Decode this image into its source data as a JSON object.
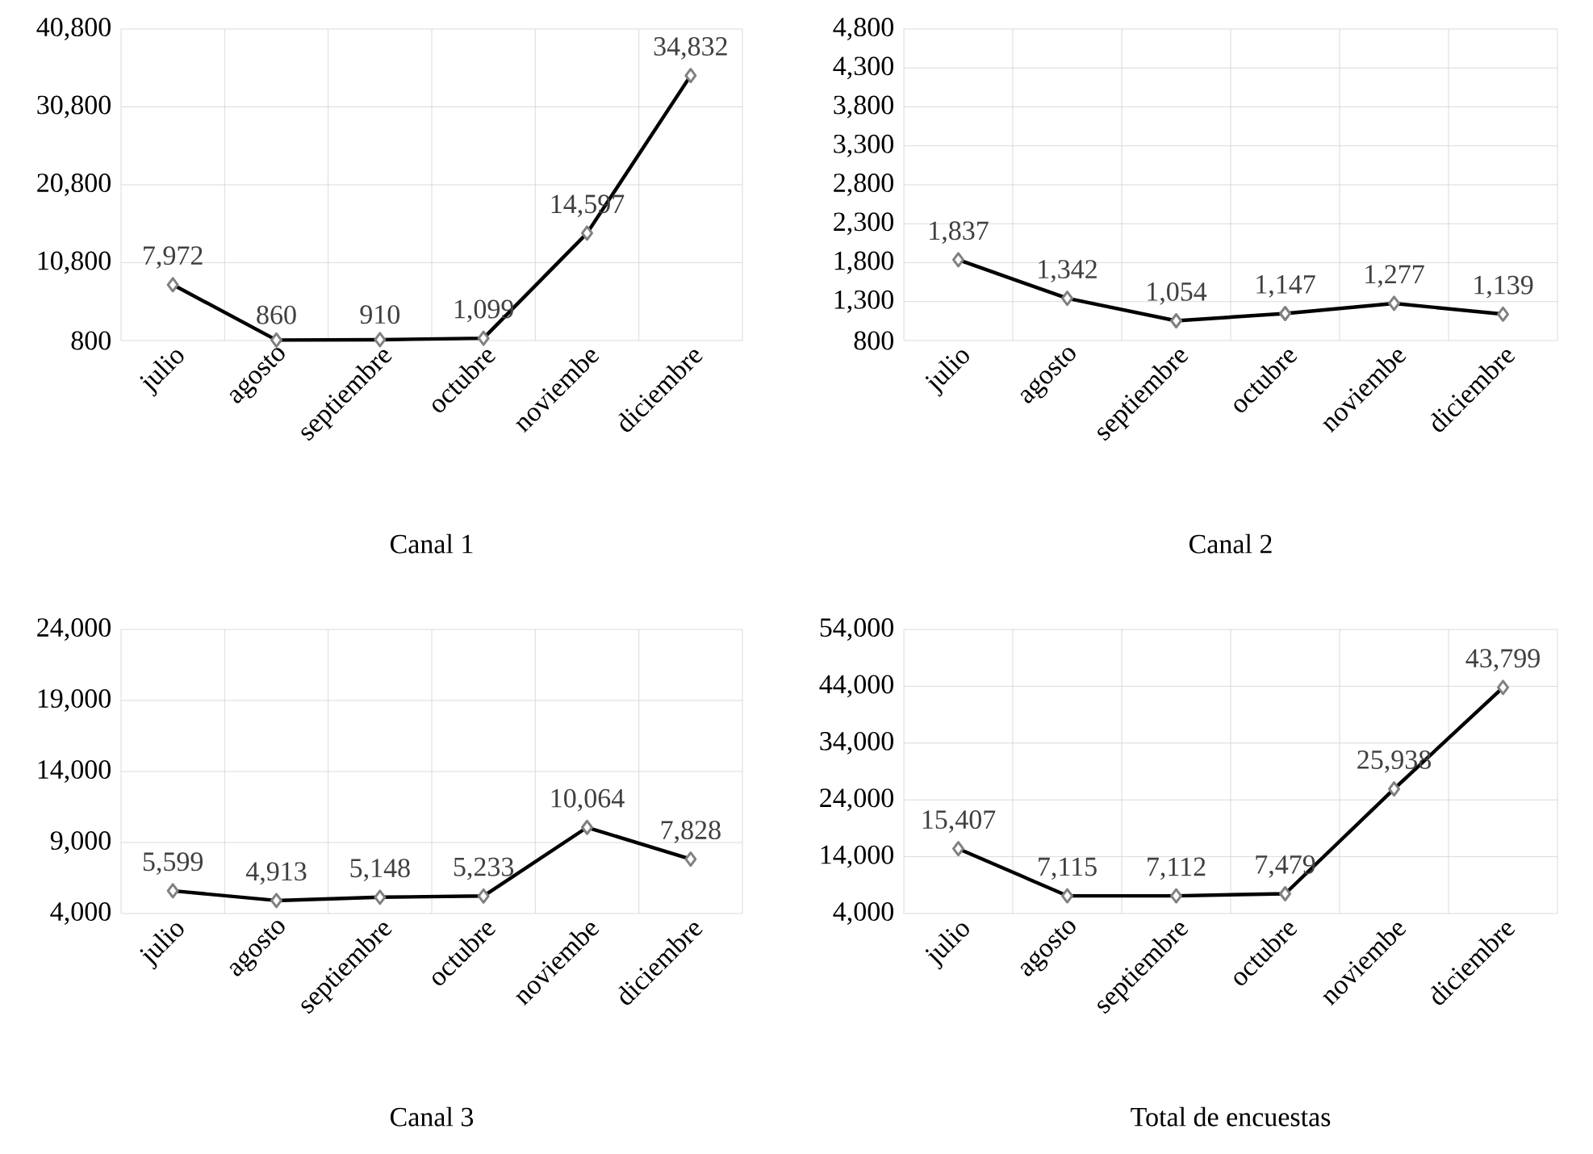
{
  "chart_data": [
    {
      "type": "line",
      "title": "Canal 1",
      "categories": [
        "julio",
        "agosto",
        "septiembre",
        "octubre",
        "noviembe",
        "diciembre"
      ],
      "series": [
        {
          "color": "#000000",
          "values": [
            7972,
            860,
            910,
            1099,
            14597,
            34832
          ],
          "value_labels": [
            "7,972",
            "860",
            "910",
            "1,099",
            "14,597",
            "34,832"
          ]
        }
      ],
      "ylim": [
        800,
        40800
      ],
      "yticks": [
        {
          "value": 800,
          "label": "800"
        },
        {
          "value": 10800,
          "label": "10,800"
        },
        {
          "value": 20800,
          "label": "20,800"
        },
        {
          "value": 30800,
          "label": "30,800"
        },
        {
          "value": 40800,
          "label": "40,800"
        }
      ],
      "grid": true,
      "marker": "diamond",
      "line_style": "solid"
    },
    {
      "type": "line",
      "title": "Canal 2",
      "categories": [
        "julio",
        "agosto",
        "septiembre",
        "octubre",
        "noviembe",
        "diciembre"
      ],
      "series": [
        {
          "color": "#000000",
          "values": [
            1837,
            1342,
            1054,
            1147,
            1277,
            1139
          ],
          "value_labels": [
            "1,837",
            "1,342",
            "1,054",
            "1,147",
            "1,277",
            "1,139"
          ]
        }
      ],
      "ylim": [
        800,
        4800
      ],
      "yticks": [
        {
          "value": 800,
          "label": "800"
        },
        {
          "value": 1300,
          "label": "1,300"
        },
        {
          "value": 1800,
          "label": "1,800"
        },
        {
          "value": 2300,
          "label": "2,300"
        },
        {
          "value": 2800,
          "label": "2,800"
        },
        {
          "value": 3300,
          "label": "3,300"
        },
        {
          "value": 3800,
          "label": "3,800"
        },
        {
          "value": 4300,
          "label": "4,300"
        },
        {
          "value": 4800,
          "label": "4,800"
        }
      ],
      "grid": true,
      "marker": "diamond",
      "line_style": "solid"
    },
    {
      "type": "line",
      "title": "Canal 3",
      "categories": [
        "julio",
        "agosto",
        "septiembre",
        "octubre",
        "noviembe",
        "diciembre"
      ],
      "series": [
        {
          "color": "#000000",
          "values": [
            5599,
            4913,
            5148,
            5233,
            10064,
            7828
          ],
          "value_labels": [
            "5,599",
            "4,913",
            "5,148",
            "5,233",
            "10,064",
            "7,828"
          ]
        }
      ],
      "ylim": [
        4000,
        24000
      ],
      "yticks": [
        {
          "value": 4000,
          "label": "4,000"
        },
        {
          "value": 9000,
          "label": "9,000"
        },
        {
          "value": 14000,
          "label": "14,000"
        },
        {
          "value": 19000,
          "label": "19,000"
        },
        {
          "value": 24000,
          "label": "24,000"
        }
      ],
      "grid": true,
      "marker": "diamond",
      "line_style": "solid"
    },
    {
      "type": "line",
      "title": "Total de encuestas",
      "categories": [
        "julio",
        "agosto",
        "septiembre",
        "octubre",
        "noviembe",
        "diciembre"
      ],
      "series": [
        {
          "color": "#000000",
          "values": [
            15407,
            7115,
            7112,
            7479,
            25938,
            43799
          ],
          "value_labels": [
            "15,407",
            "7,115",
            "7,112",
            "7,479",
            "25,938",
            "43,799"
          ]
        }
      ],
      "ylim": [
        4000,
        54000
      ],
      "yticks": [
        {
          "value": 4000,
          "label": "4,000"
        },
        {
          "value": 14000,
          "label": "14,000"
        },
        {
          "value": 24000,
          "label": "24,000"
        },
        {
          "value": 34000,
          "label": "34,000"
        },
        {
          "value": 44000,
          "label": "44,000"
        },
        {
          "value": 54000,
          "label": "54,000"
        }
      ],
      "grid": true,
      "marker": "diamond",
      "line_style": "solid"
    }
  ]
}
